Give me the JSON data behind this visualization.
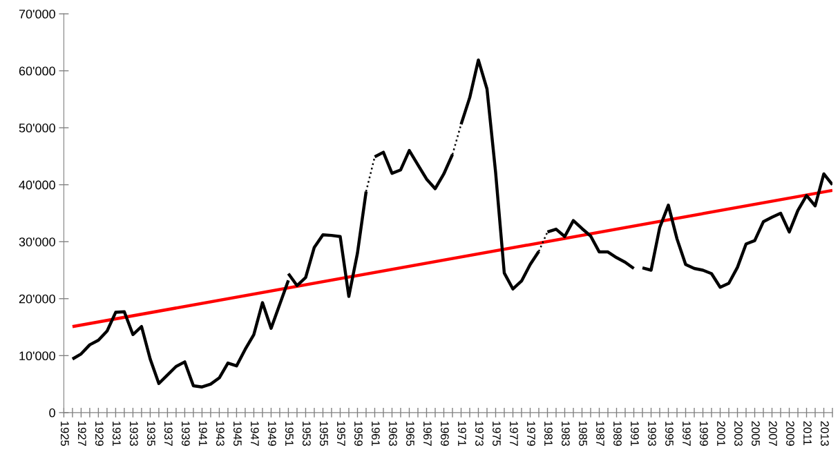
{
  "chart_data": {
    "type": "line",
    "xlim": [
      1925,
      2014
    ],
    "ylim": [
      0,
      70000
    ],
    "xticks": [
      {
        "value": 1925,
        "label": "1925"
      },
      {
        "value": 1926,
        "label": null
      },
      {
        "value": 1927,
        "label": "1927"
      },
      {
        "value": 1928,
        "label": null
      },
      {
        "value": 1929,
        "label": "1929"
      },
      {
        "value": 1930,
        "label": null
      },
      {
        "value": 1931,
        "label": "1931"
      },
      {
        "value": 1932,
        "label": null
      },
      {
        "value": 1933,
        "label": "1933"
      },
      {
        "value": 1934,
        "label": null
      },
      {
        "value": 1935,
        "label": "1935"
      },
      {
        "value": 1936,
        "label": null
      },
      {
        "value": 1937,
        "label": "1937"
      },
      {
        "value": 1938,
        "label": null
      },
      {
        "value": 1939,
        "label": "1939"
      },
      {
        "value": 1940,
        "label": null
      },
      {
        "value": 1941,
        "label": "1941"
      },
      {
        "value": 1942,
        "label": null
      },
      {
        "value": 1943,
        "label": "1943"
      },
      {
        "value": 1944,
        "label": null
      },
      {
        "value": 1945,
        "label": "1945"
      },
      {
        "value": 1946,
        "label": null
      },
      {
        "value": 1947,
        "label": "1947"
      },
      {
        "value": 1948,
        "label": null
      },
      {
        "value": 1949,
        "label": "1949"
      },
      {
        "value": 1950,
        "label": null
      },
      {
        "value": 1951,
        "label": "1951"
      },
      {
        "value": 1952,
        "label": null
      },
      {
        "value": 1953,
        "label": "1953"
      },
      {
        "value": 1954,
        "label": null
      },
      {
        "value": 1955,
        "label": "1955"
      },
      {
        "value": 1956,
        "label": null
      },
      {
        "value": 1957,
        "label": "1957"
      },
      {
        "value": 1958,
        "label": null
      },
      {
        "value": 1959,
        "label": "1959"
      },
      {
        "value": 1960,
        "label": null
      },
      {
        "value": 1961,
        "label": "1961"
      },
      {
        "value": 1962,
        "label": null
      },
      {
        "value": 1963,
        "label": "1963"
      },
      {
        "value": 1964,
        "label": null
      },
      {
        "value": 1965,
        "label": "1965"
      },
      {
        "value": 1966,
        "label": null
      },
      {
        "value": 1967,
        "label": "1967"
      },
      {
        "value": 1968,
        "label": null
      },
      {
        "value": 1969,
        "label": "1969"
      },
      {
        "value": 1970,
        "label": null
      },
      {
        "value": 1971,
        "label": "1971"
      },
      {
        "value": 1972,
        "label": null
      },
      {
        "value": 1973,
        "label": "1973"
      },
      {
        "value": 1974,
        "label": null
      },
      {
        "value": 1975,
        "label": "1975"
      },
      {
        "value": 1976,
        "label": null
      },
      {
        "value": 1977,
        "label": "1977"
      },
      {
        "value": 1978,
        "label": null
      },
      {
        "value": 1979,
        "label": "1979"
      },
      {
        "value": 1980,
        "label": null
      },
      {
        "value": 1981,
        "label": "1981"
      },
      {
        "value": 1982,
        "label": null
      },
      {
        "value": 1983,
        "label": "1983"
      },
      {
        "value": 1984,
        "label": null
      },
      {
        "value": 1985,
        "label": "1985"
      },
      {
        "value": 1986,
        "label": null
      },
      {
        "value": 1987,
        "label": "1987"
      },
      {
        "value": 1988,
        "label": null
      },
      {
        "value": 1989,
        "label": "1989"
      },
      {
        "value": 1990,
        "label": null
      },
      {
        "value": 1991,
        "label": "1991"
      },
      {
        "value": 1992,
        "label": null
      },
      {
        "value": 1993,
        "label": "1993"
      },
      {
        "value": 1994,
        "label": null
      },
      {
        "value": 1995,
        "label": "1995"
      },
      {
        "value": 1996,
        "label": null
      },
      {
        "value": 1997,
        "label": "1997"
      },
      {
        "value": 1998,
        "label": null
      },
      {
        "value": 1999,
        "label": "1999"
      },
      {
        "value": 2000,
        "label": null
      },
      {
        "value": 2001,
        "label": "2001"
      },
      {
        "value": 2002,
        "label": null
      },
      {
        "value": 2003,
        "label": "2003"
      },
      {
        "value": 2004,
        "label": null
      },
      {
        "value": 2005,
        "label": "2005"
      },
      {
        "value": 2006,
        "label": null
      },
      {
        "value": 2007,
        "label": "2007"
      },
      {
        "value": 2008,
        "label": null
      },
      {
        "value": 2009,
        "label": "2009"
      },
      {
        "value": 2010,
        "label": null
      },
      {
        "value": 2011,
        "label": "2011"
      },
      {
        "value": 2012,
        "label": null
      },
      {
        "value": 2013,
        "label": "2013"
      },
      {
        "value": 2014,
        "label": null
      }
    ],
    "yticks": [
      0,
      {
        "value": 10000,
        "label": "10'000"
      },
      {
        "value": 20000,
        "label": "20'000"
      },
      {
        "value": 30000,
        "label": "30'000"
      },
      {
        "value": 40000,
        "label": "40'000"
      },
      {
        "value": 50000,
        "label": "50'000"
      },
      {
        "value": 60000,
        "label": "60'000"
      },
      {
        "value": 70000,
        "label": "70'000"
      }
    ],
    "line_style": "solid",
    "series": [
      {
        "color": "#ff0000",
        "x": [
          1926,
          2014
        ],
        "values": [
          15100,
          39000
        ]
      },
      {
        "color": "#000000",
        "x": [
          1926,
          1927,
          1928,
          1929,
          1930,
          1931,
          1932,
          1933,
          1934,
          1935,
          1936,
          1937,
          1938,
          1939,
          1940,
          1941,
          1942,
          1943,
          1944,
          1945,
          1946,
          1947,
          1948,
          1949,
          1950,
          1951
        ],
        "values": [
          9400,
          10300,
          11900,
          12700,
          14300,
          17600,
          17700,
          13700,
          15100,
          9400,
          5100,
          6600,
          8100,
          8900,
          4700,
          4500,
          5000,
          6100,
          8700,
          8200,
          11100,
          13700,
          19300,
          14800,
          19000,
          23200
        ]
      },
      {
        "color": "#000000",
        "x": [
          1951,
          1952,
          1953,
          1954,
          1955,
          1956,
          1957,
          1958,
          1959,
          1960
        ],
        "values": [
          24400,
          22300,
          23700,
          29000,
          31200,
          31100,
          30900,
          20400,
          28000,
          38800
        ]
      },
      {
        "color": "#000000",
        "line_style": "dotted",
        "x": [
          1960,
          1961
        ],
        "values": [
          38800,
          44900
        ]
      },
      {
        "color": "#000000",
        "x": [
          1961,
          1962,
          1963,
          1964,
          1965,
          1966,
          1967,
          1968,
          1969,
          1970
        ],
        "values": [
          44900,
          45700,
          42000,
          42600,
          46000,
          43500,
          41000,
          39300,
          41900,
          45300
        ]
      },
      {
        "color": "#000000",
        "line_style": "dotted",
        "x": [
          1970,
          1971
        ],
        "values": [
          45300,
          50600
        ]
      },
      {
        "color": "#000000",
        "x": [
          1971,
          1972,
          1973,
          1974,
          1975,
          1976,
          1977,
          1978,
          1979,
          1980
        ],
        "values": [
          50600,
          55300,
          61900,
          56800,
          42100,
          24500,
          21700,
          23100,
          26000,
          28300
        ]
      },
      {
        "color": "#000000",
        "line_style": "dotted",
        "x": [
          1980,
          1981
        ],
        "values": [
          28300,
          31700
        ]
      },
      {
        "color": "#000000",
        "x": [
          1981,
          1982,
          1983,
          1984,
          1985,
          1986,
          1987,
          1988,
          1989,
          1990,
          1991
        ],
        "values": [
          31700,
          32200,
          30900,
          33700,
          32300,
          31000,
          28200,
          28200,
          27200,
          26400,
          25300
        ]
      },
      {
        "color": "#000000",
        "x": [
          1992,
          1993,
          1994,
          1995,
          1996,
          1997,
          1998,
          1999,
          2000,
          2001,
          2002,
          2003,
          2004,
          2005,
          2006,
          2007,
          2008,
          2009,
          2010,
          2011,
          2012,
          2013,
          2014
        ],
        "values": [
          25400,
          25000,
          32500,
          36400,
          30500,
          26000,
          25300,
          25000,
          24400,
          22000,
          22700,
          25500,
          29600,
          30200,
          33500,
          34300,
          35000,
          31700,
          35500,
          38100,
          36300,
          41900,
          40000
        ]
      }
    ]
  }
}
